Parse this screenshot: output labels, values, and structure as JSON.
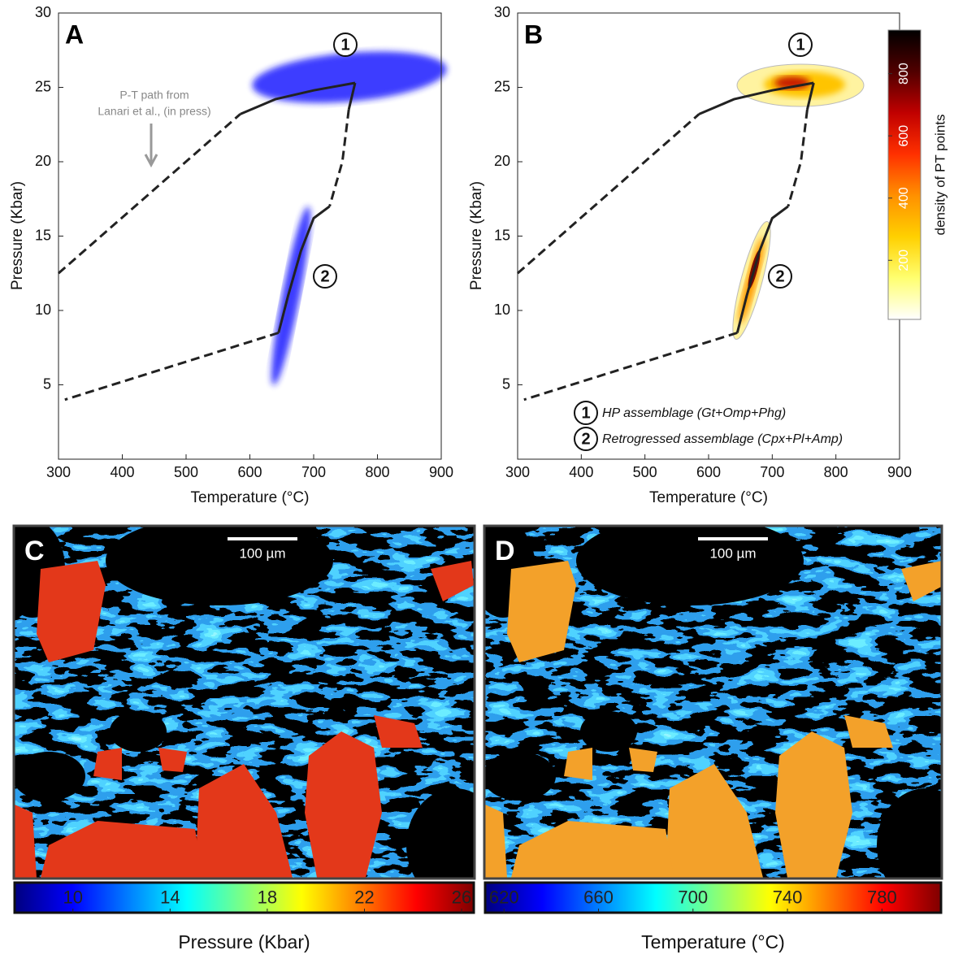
{
  "chart_data": [
    {
      "type": "line",
      "panel": "A",
      "xlabel": "Temperature (°C)",
      "ylabel": "Pressure (Kbar)",
      "xlim": [
        300,
        900
      ],
      "ylim": [
        0,
        30
      ],
      "xticks": [
        300,
        400,
        500,
        600,
        700,
        800,
        900
      ],
      "yticks": [
        5,
        10,
        15,
        20,
        25,
        30
      ],
      "series": [
        {
          "style": "dashed",
          "color": "#222222",
          "x": [
            300,
            585
          ],
          "values": [
            12.5,
            23.2
          ]
        },
        {
          "style": "solid",
          "color": "#222222",
          "x": [
            585,
            640,
            700,
            765
          ],
          "values": [
            23.2,
            24.2,
            24.8,
            25.3
          ]
        },
        {
          "style": "solid",
          "color": "#222222",
          "x": [
            765,
            755
          ],
          "values": [
            25.3,
            23.5
          ]
        },
        {
          "style": "dashed",
          "color": "#222222",
          "x": [
            755,
            745,
            725
          ],
          "values": [
            23.5,
            20,
            17
          ]
        },
        {
          "style": "solid",
          "color": "#222222",
          "x": [
            725,
            700,
            680,
            660,
            645
          ],
          "values": [
            17,
            16.2,
            14,
            11,
            8.5
          ]
        },
        {
          "style": "dashed",
          "color": "#222222",
          "x": [
            645,
            310
          ],
          "values": [
            8.5,
            4
          ]
        }
      ],
      "annotation": [
        "P-T path from",
        "Lanari et al., (in press)"
      ],
      "assemblages": [
        "1",
        "2"
      ],
      "point_color": "#1f1fff"
    },
    {
      "type": "line",
      "panel": "B",
      "xlabel": "Temperature (°C)",
      "ylabel": "Pressure (Kbar)",
      "xlim": [
        300,
        900
      ],
      "ylim": [
        0,
        30
      ],
      "xticks": [
        300,
        400,
        500,
        600,
        700,
        800,
        900
      ],
      "yticks": [
        5,
        10,
        15,
        20,
        25,
        30
      ],
      "series": [
        {
          "style": "dashed",
          "color": "#222222",
          "x": [
            300,
            585
          ],
          "values": [
            12.5,
            23.2
          ]
        },
        {
          "style": "solid",
          "color": "#222222",
          "x": [
            585,
            640,
            700,
            765
          ],
          "values": [
            23.2,
            24.2,
            24.8,
            25.3
          ]
        },
        {
          "style": "solid",
          "color": "#222222",
          "x": [
            765,
            755
          ],
          "values": [
            25.3,
            23.5
          ]
        },
        {
          "style": "dashed",
          "color": "#222222",
          "x": [
            755,
            745,
            725
          ],
          "values": [
            23.5,
            20,
            17
          ]
        },
        {
          "style": "solid",
          "color": "#222222",
          "x": [
            725,
            700,
            680,
            660,
            645
          ],
          "values": [
            17,
            16.2,
            14,
            11,
            8.5
          ]
        },
        {
          "style": "dashed",
          "color": "#222222",
          "x": [
            645,
            310
          ],
          "values": [
            8.5,
            4
          ]
        }
      ],
      "legend": [
        {
          "marker": "1",
          "label": "HP assemblage (Gt+Omp+Phg)"
        },
        {
          "marker": "2",
          "label": "Retrogressed assemblage (Cpx+Pl+Amp)"
        }
      ],
      "colorbar": {
        "label": "density of PT points",
        "clim": [
          10,
          940
        ],
        "ticks": [
          200,
          400,
          600,
          800
        ],
        "colormap": "hot_r"
      }
    },
    {
      "type": "image",
      "panel": "C",
      "scale_bar": "100 µm",
      "colorbar": {
        "label": "Pressure (Kbar)",
        "clim": [
          7.6,
          26.5
        ],
        "ticks": [
          10,
          14,
          18,
          22,
          26
        ],
        "colormap": "jet"
      }
    },
    {
      "type": "image",
      "panel": "D",
      "scale_bar": "100 µm",
      "colorbar": {
        "label": "Temperature (°C)",
        "clim": [
          612,
          805
        ],
        "ticks": [
          620,
          660,
          700,
          740,
          780
        ],
        "colormap": "jet"
      }
    }
  ]
}
